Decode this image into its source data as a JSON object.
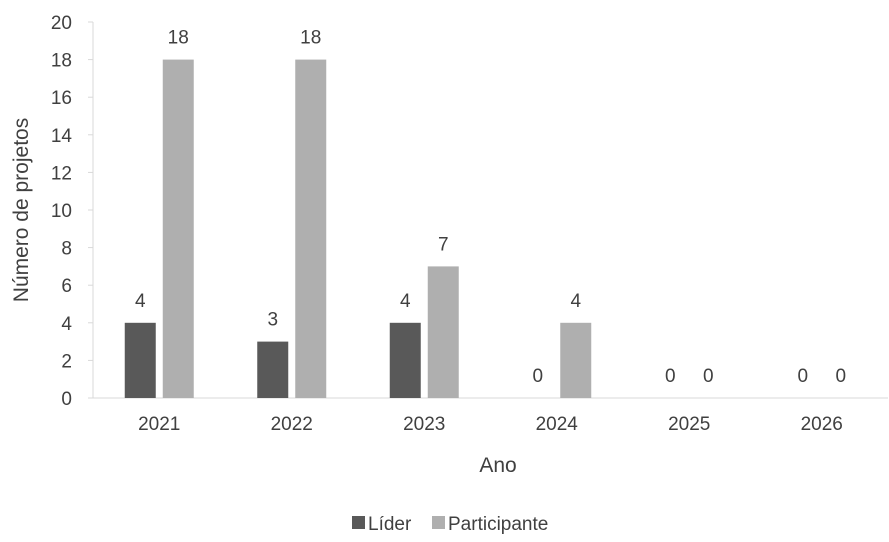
{
  "chart_data": {
    "type": "bar",
    "categories": [
      "2021",
      "2022",
      "2023",
      "2024",
      "2025",
      "2026"
    ],
    "series": [
      {
        "name": "Líder",
        "values": [
          4,
          3,
          4,
          0,
          0,
          0
        ],
        "color": "#595959"
      },
      {
        "name": "Participante",
        "values": [
          18,
          18,
          7,
          4,
          0,
          0
        ],
        "color": "#afafaf"
      }
    ],
    "xlabel": "Ano",
    "ylabel": "Número de projetos",
    "ylim": [
      0,
      20
    ],
    "yticks": [
      0,
      2,
      4,
      6,
      8,
      10,
      12,
      14,
      16,
      18,
      20
    ],
    "grid": false,
    "legend": "bottom",
    "data_labels": true
  }
}
